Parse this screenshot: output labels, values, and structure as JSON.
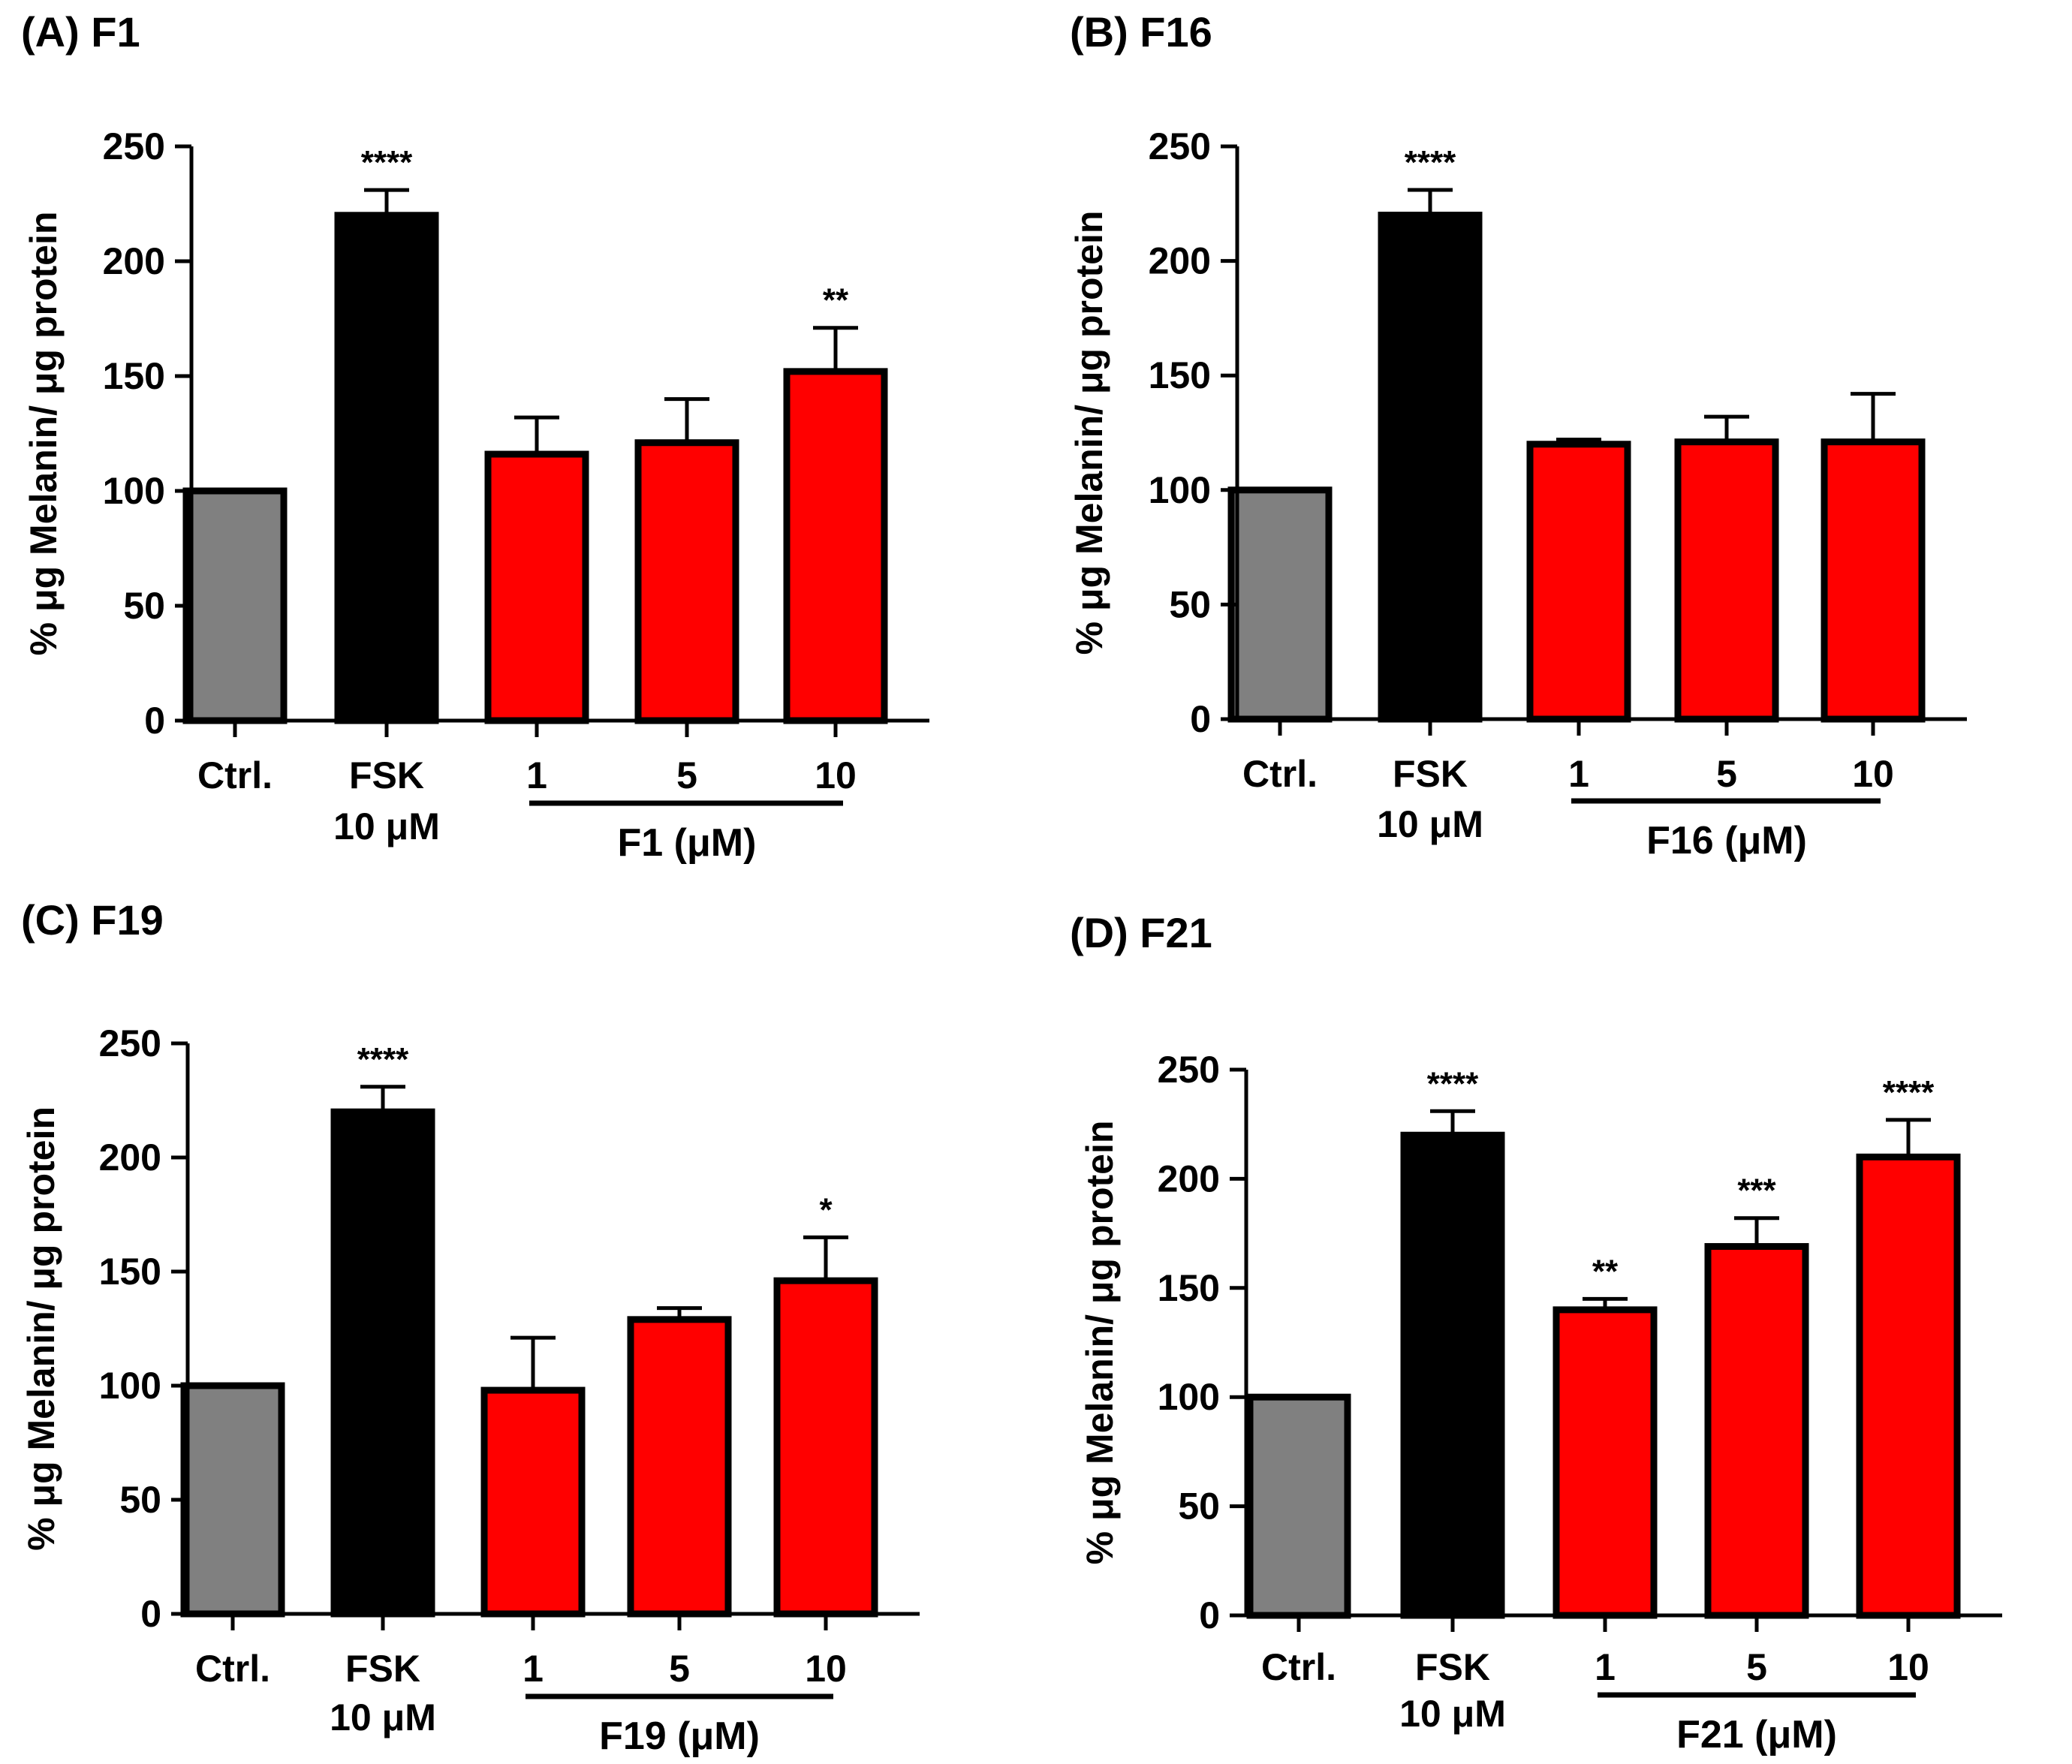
{
  "figure": {
    "panels": [
      {
        "id": "A",
        "label": "(A) F1"
      },
      {
        "id": "B",
        "label": "(B) F16"
      },
      {
        "id": "C",
        "label": "(C) F19"
      },
      {
        "id": "D",
        "label": "(D) F21"
      }
    ]
  },
  "chart_data": [
    {
      "type": "bar",
      "title": "(A) F1",
      "ylabel": "% μg Melanin/ μg protein",
      "ylim": [
        0,
        250
      ],
      "yticks": [
        "0",
        "50",
        "100",
        "150",
        "200",
        "250"
      ],
      "categories": [
        "Ctrl.",
        "FSK",
        "1",
        "5",
        "10"
      ],
      "category_sublabels": [
        "",
        "10 μM",
        "",
        "",
        ""
      ],
      "group_label": "F1 (μM)",
      "values": [
        100,
        220,
        116,
        121,
        152
      ],
      "errors": [
        0,
        11,
        16,
        19,
        19
      ],
      "significance": [
        "",
        "****",
        "",
        "",
        "**"
      ],
      "colors": [
        "#808080",
        "#000000",
        "#ff0000",
        "#ff0000",
        "#ff0000"
      ]
    },
    {
      "type": "bar",
      "title": "(B) F16",
      "ylabel": "% μg Melanin/ μg protein",
      "ylim": [
        0,
        250
      ],
      "yticks": [
        "0",
        "50",
        "100",
        "150",
        "200",
        "250"
      ],
      "categories": [
        "Ctrl.",
        "FSK",
        "1",
        "5",
        "10"
      ],
      "category_sublabels": [
        "",
        "10 μM",
        "",
        "",
        ""
      ],
      "group_label": "F16 (μM)",
      "values": [
        100,
        220,
        120,
        121,
        121
      ],
      "errors": [
        0,
        11,
        2,
        11,
        21
      ],
      "significance": [
        "",
        "****",
        "",
        "",
        ""
      ],
      "colors": [
        "#808080",
        "#000000",
        "#ff0000",
        "#ff0000",
        "#ff0000"
      ]
    },
    {
      "type": "bar",
      "title": "(C) F19",
      "ylabel": "% μg Melanin/ μg protein",
      "ylim": [
        0,
        250
      ],
      "yticks": [
        "0",
        "50",
        "100",
        "150",
        "200",
        "250"
      ],
      "categories": [
        "Ctrl.",
        "FSK",
        "1",
        "5",
        "10"
      ],
      "category_sublabels": [
        "",
        "10 μM",
        "",
        "",
        ""
      ],
      "group_label": "F19 (μM)",
      "values": [
        100,
        220,
        98,
        129,
        146
      ],
      "errors": [
        0,
        11,
        23,
        5,
        19
      ],
      "significance": [
        "",
        "****",
        "",
        "",
        "*"
      ],
      "colors": [
        "#808080",
        "#000000",
        "#ff0000",
        "#ff0000",
        "#ff0000"
      ]
    },
    {
      "type": "bar",
      "title": "(D) F21",
      "ylabel": "% μg Melanin/ μg protein",
      "ylim": [
        0,
        250
      ],
      "yticks": [
        "0",
        "50",
        "100",
        "150",
        "200",
        "250"
      ],
      "categories": [
        "Ctrl.",
        "FSK",
        "1",
        "5",
        "10"
      ],
      "category_sublabels": [
        "",
        "10 μM",
        "",
        "",
        ""
      ],
      "group_label": "F21 (μM)",
      "values": [
        100,
        220,
        140,
        169,
        210
      ],
      "errors": [
        0,
        11,
        5,
        13,
        17
      ],
      "significance": [
        "",
        "****",
        "**",
        "***",
        "****"
      ],
      "colors": [
        "#808080",
        "#000000",
        "#ff0000",
        "#ff0000",
        "#ff0000"
      ]
    }
  ]
}
